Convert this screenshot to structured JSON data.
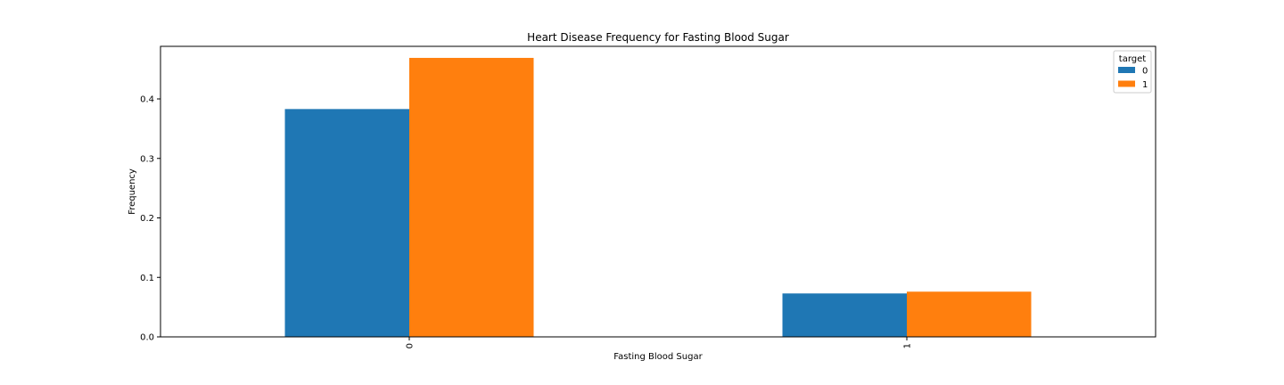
{
  "chart_data": {
    "type": "bar",
    "title": "Heart Disease Frequency for Fasting Blood Sugar",
    "xlabel": "Fasting Blood Sugar",
    "ylabel": "Frequency",
    "categories": [
      "0",
      "1"
    ],
    "series": [
      {
        "name": "0",
        "color": "#1f77b4",
        "values": [
          0.383,
          0.073
        ]
      },
      {
        "name": "1",
        "color": "#ff7f0e",
        "values": [
          0.469,
          0.076
        ]
      }
    ],
    "ylim": [
      0,
      0.4884
    ],
    "yticks": [
      "0.0",
      "0.1",
      "0.2",
      "0.3",
      "0.4"
    ],
    "legend": {
      "title": "target",
      "position": "top-right"
    },
    "grid": false
  }
}
